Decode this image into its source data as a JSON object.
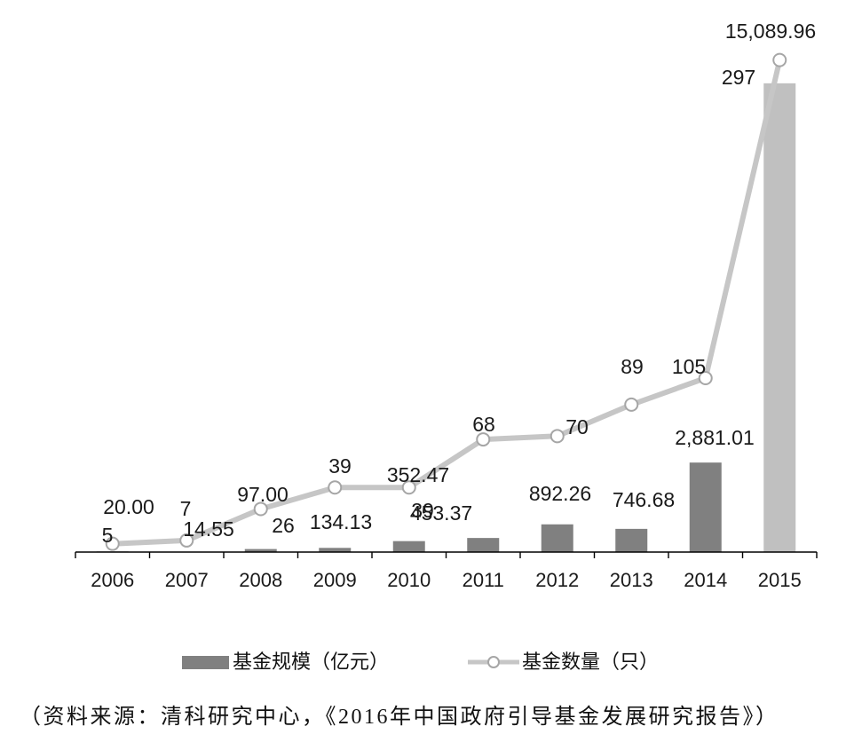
{
  "chart_data": {
    "type": "bar",
    "categories": [
      "2006",
      "2007",
      "2008",
      "2009",
      "2010",
      "2011",
      "2012",
      "2013",
      "2014",
      "2015"
    ],
    "series": [
      {
        "name": "基金规模（亿元）",
        "type": "bar",
        "values": [
          20.0,
          14.55,
          97.0,
          134.13,
          352.47,
          453.37,
          892.26,
          746.68,
          2881.01,
          15089.96
        ],
        "labels": [
          "20.00",
          "14.55",
          "97.00",
          "134.13",
          "352.47",
          "453.37",
          "892.26",
          "746.68",
          "2,881.01",
          "15,089.96"
        ],
        "colors": [
          "#808080",
          "#808080",
          "#808080",
          "#808080",
          "#808080",
          "#808080",
          "#808080",
          "#808080",
          "#808080",
          "#c0c0c0"
        ]
      },
      {
        "name": "基金数量（只）",
        "type": "line",
        "secondary_axis": true,
        "values": [
          5,
          7,
          26,
          39,
          39,
          68,
          70,
          89,
          105,
          297
        ],
        "labels": [
          "5",
          "7",
          "26",
          "39",
          "39",
          "68",
          "70",
          "89",
          "105",
          "297"
        ],
        "color": "#c6c6c6",
        "marker_color": "#a6a6a6",
        "marker_fill": "#ffffff"
      }
    ],
    "ylim": [
      0,
      16000
    ],
    "y2lim": [
      0,
      300
    ],
    "grid": false,
    "legend": "bottom"
  },
  "source": "（资料来源：清科研究中心，《2016年中国政府引导基金发展研究报告》）"
}
